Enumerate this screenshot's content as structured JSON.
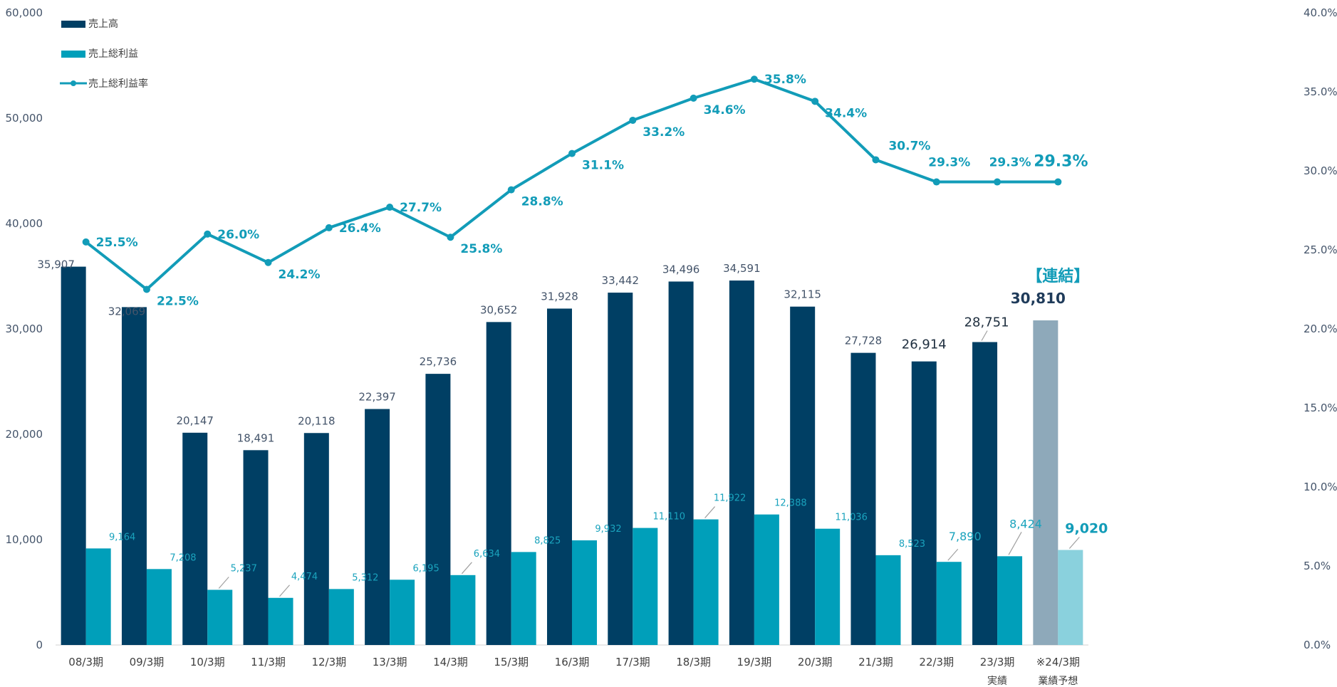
{
  "chart_data": {
    "type": "bar",
    "categories": [
      "08/3期",
      "09/3期",
      "10/3期",
      "11/3期",
      "12/3期",
      "13/3期",
      "14/3期",
      "15/3期",
      "16/3期",
      "17/3期",
      "18/3期",
      "19/3期",
      "20/3期",
      "21/3期",
      "22/3期",
      "23/3期",
      "※24/3期"
    ],
    "category_sublabels": [
      "",
      "",
      "",
      "",
      "",
      "",
      "",
      "",
      "",
      "",
      "",
      "",
      "",
      "",
      "",
      "実績",
      "業績予想"
    ],
    "series": [
      {
        "name": "売上高",
        "type": "bar",
        "axis": "left",
        "values": [
          35907,
          32069,
          20147,
          18491,
          20118,
          22397,
          25736,
          30652,
          31928,
          33442,
          34496,
          34591,
          32115,
          27728,
          26914,
          28751,
          30810
        ],
        "labels": [
          "35,907",
          "32,069",
          "20,147",
          "18,491",
          "20,118",
          "22,397",
          "25,736",
          "30,652",
          "31,928",
          "33,442",
          "34,496",
          "34,591",
          "32,115",
          "27,728",
          "26,914",
          "28,751",
          "30,810"
        ]
      },
      {
        "name": "売上総利益",
        "type": "bar",
        "axis": "left",
        "values": [
          9164,
          7208,
          5237,
          4474,
          5312,
          6195,
          6634,
          8825,
          9932,
          11110,
          11922,
          12388,
          11036,
          8523,
          7890,
          8424,
          9020
        ],
        "labels": [
          "9,164",
          "7,208",
          "5,237",
          "4,474",
          "5,312",
          "6,195",
          "6,634",
          "8,825",
          "9,932",
          "11,110",
          "11,922",
          "12,388",
          "11,036",
          "8,523",
          "7,890",
          "8,424",
          "9,020"
        ]
      },
      {
        "name": "売上総利益率",
        "type": "line",
        "axis": "right",
        "values": [
          25.5,
          22.5,
          26.0,
          24.2,
          26.4,
          27.7,
          25.8,
          28.8,
          31.1,
          33.2,
          34.6,
          35.8,
          34.4,
          30.7,
          29.3,
          29.3,
          29.3
        ],
        "labels": [
          "25.5%",
          "22.5%",
          "26.0%",
          "24.2%",
          "26.4%",
          "27.7%",
          "25.8%",
          "28.8%",
          "31.1%",
          "33.2%",
          "34.6%",
          "35.8%",
          "34.4%",
          "30.7%",
          "29.3%",
          "29.3%",
          "29.3%"
        ]
      }
    ],
    "y_left": {
      "min": 0,
      "max": 60000,
      "ticks": [
        "0",
        "10,000",
        "20,000",
        "30,000",
        "40,000",
        "50,000",
        "60,000"
      ]
    },
    "y_right": {
      "min": 0,
      "max": 40,
      "ticks": [
        "0.0%",
        "5.0%",
        "10.0%",
        "15.0%",
        "20.0%",
        "25.0%",
        "30.0%",
        "35.0%",
        "40.0%"
      ]
    },
    "annotation": "【連結】",
    "legend_position": "top-left",
    "grid": false,
    "colors": {
      "sales": "#003f64",
      "gross_profit": "#009fba",
      "rate_line": "#129cb8",
      "forecast_sales": "#8ea9ba",
      "forecast_gross_profit": "#8ad1dd"
    }
  }
}
